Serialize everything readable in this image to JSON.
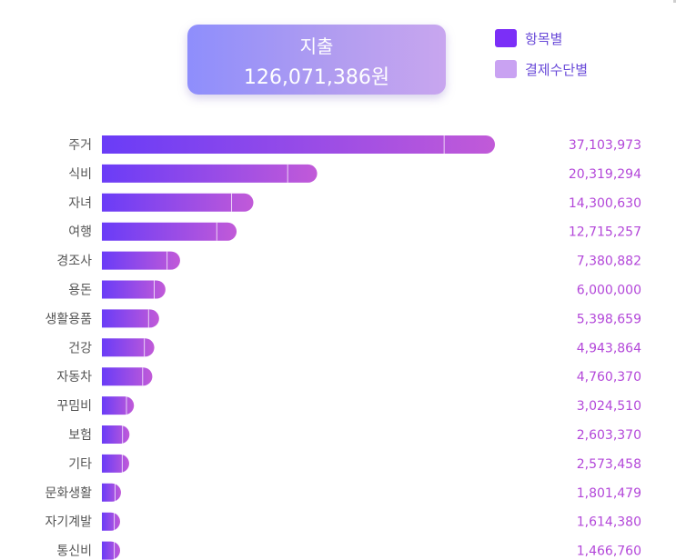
{
  "summary": {
    "title": "지출",
    "total": "126,071,386원"
  },
  "legend": [
    {
      "label": "항목별",
      "color": "#7b2ff7"
    },
    {
      "label": "결제수단별",
      "color": "#c9a2f2"
    }
  ],
  "colors": {
    "bar_start": "#6a3cf7",
    "bar_end": "#c15ad8",
    "value_text": "#b347d9",
    "category_text": "#555555"
  },
  "chart_data": {
    "type": "bar",
    "orientation": "horizontal",
    "categories": [
      "주거",
      "식비",
      "자녀",
      "여행",
      "경조사",
      "용돈",
      "생활용품",
      "건강",
      "자동차",
      "꾸밈비",
      "보험",
      "기타",
      "문화생활",
      "자기계발",
      "통신비"
    ],
    "values": [
      37103973,
      20319294,
      14300630,
      12715257,
      7380882,
      6000000,
      5398659,
      4943864,
      4760370,
      3024510,
      2603370,
      2573458,
      1801479,
      1614380,
      1466760
    ],
    "value_labels": [
      "37,103,973",
      "20,319,294",
      "14,300,630",
      "12,715,257",
      "7,380,882",
      "6,000,000",
      "5,398,659",
      "4,943,864",
      "4,760,370",
      "3,024,510",
      "2,603,370",
      "2,573,458",
      "1,801,479",
      "1,614,380",
      "1,466,760"
    ],
    "xlim": [
      0,
      37103973
    ],
    "grid": false,
    "legend_position": "top-right"
  }
}
